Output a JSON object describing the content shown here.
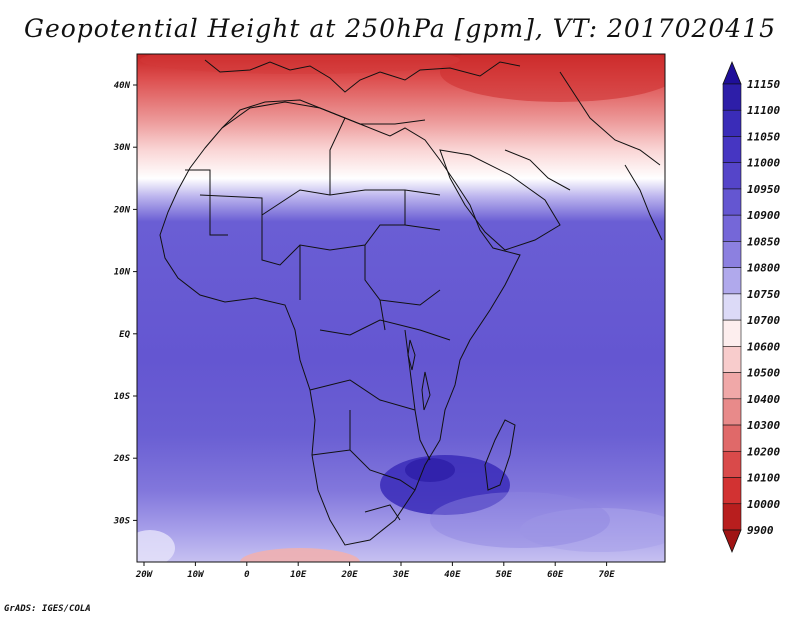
{
  "title": "Geopotential Height at 250hPa [gpm], VT: 2017020415",
  "footer": "GrADS: IGES/COLA",
  "map": {
    "lat_labels": [
      "40N",
      "30N",
      "20N",
      "10N",
      "EQ",
      "10S",
      "20S",
      "30S"
    ],
    "lon_labels": [
      "20W",
      "10W",
      "0",
      "10E",
      "20E",
      "30E",
      "40E",
      "50E",
      "60E",
      "70E"
    ]
  },
  "colorbar": {
    "levels": [
      "11150",
      "11100",
      "11050",
      "11000",
      "10950",
      "10900",
      "10850",
      "10800",
      "10750",
      "10700",
      "10600",
      "10500",
      "10400",
      "10300",
      "10200",
      "10100",
      "10000",
      "9900"
    ],
    "colors": [
      "#1f0f99",
      "#2d1ea8",
      "#3a2cb8",
      "#4636c2",
      "#5545c9",
      "#6456d1",
      "#7567d8",
      "#8c80e0",
      "#b0a9ec",
      "#dcdaf7",
      "#fdeeee",
      "#f8cccc",
      "#f0a8a8",
      "#e88a8a",
      "#e06969",
      "#d94a4a",
      "#d23232",
      "#b81e1e",
      "#a01414"
    ]
  }
}
